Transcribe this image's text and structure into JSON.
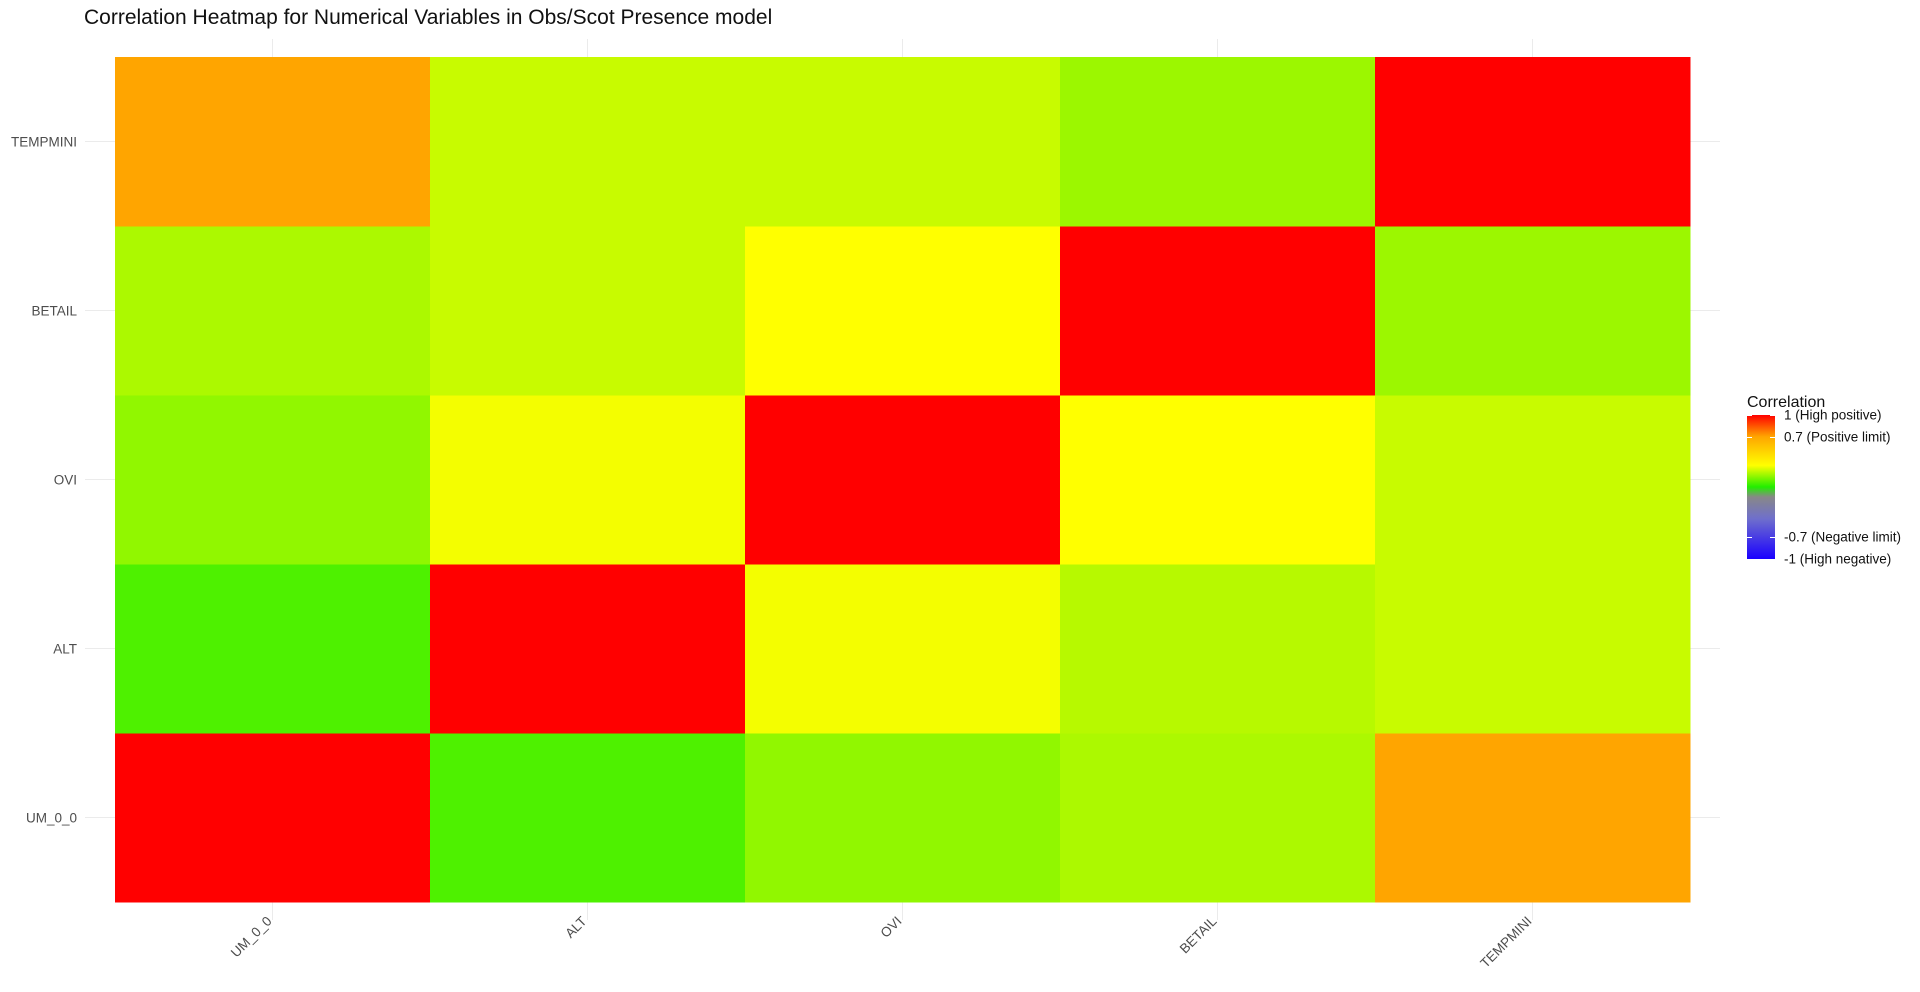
{
  "chart_data": {
    "type": "heatmap",
    "title": "Correlation Heatmap for Numerical Variables in Obs/Scot Presence model",
    "x_categories": [
      "UM_0_0",
      "ALT",
      "OVI",
      "BETAIL",
      "TEMPMINI"
    ],
    "y_categories": [
      "UM_0_0",
      "ALT",
      "OVI",
      "BETAIL",
      "TEMPMINI"
    ],
    "values": [
      [
        1.0,
        0.08,
        0.2,
        0.25,
        0.7
      ],
      [
        0.08,
        1.0,
        0.38,
        0.27,
        0.3
      ],
      [
        0.2,
        0.38,
        1.0,
        0.4,
        0.3
      ],
      [
        0.25,
        0.3,
        0.4,
        1.0,
        0.22
      ],
      [
        0.7,
        0.3,
        0.3,
        0.22,
        1.0
      ]
    ],
    "legend": {
      "title": "Correlation",
      "placement": "right",
      "range": [
        -1,
        1
      ],
      "breaks": [
        {
          "value": 1,
          "label": "1 (High positive)"
        },
        {
          "value": 0.7,
          "label": "0.7 (Positive limit)"
        },
        {
          "value": -0.7,
          "label": "-0.7 (Negative limit)"
        },
        {
          "value": -1,
          "label": "-1 (High negative)"
        }
      ]
    },
    "colors": {
      "high_positive": "#ff0000",
      "positive_limit": "#ffa500",
      "mid_positive": "#ffff00",
      "neutral": "#22ee00",
      "negative_mid": "#888888",
      "negative_limit": "#6f6fcc",
      "high_negative": "#1a00ff"
    },
    "grid": true
  }
}
